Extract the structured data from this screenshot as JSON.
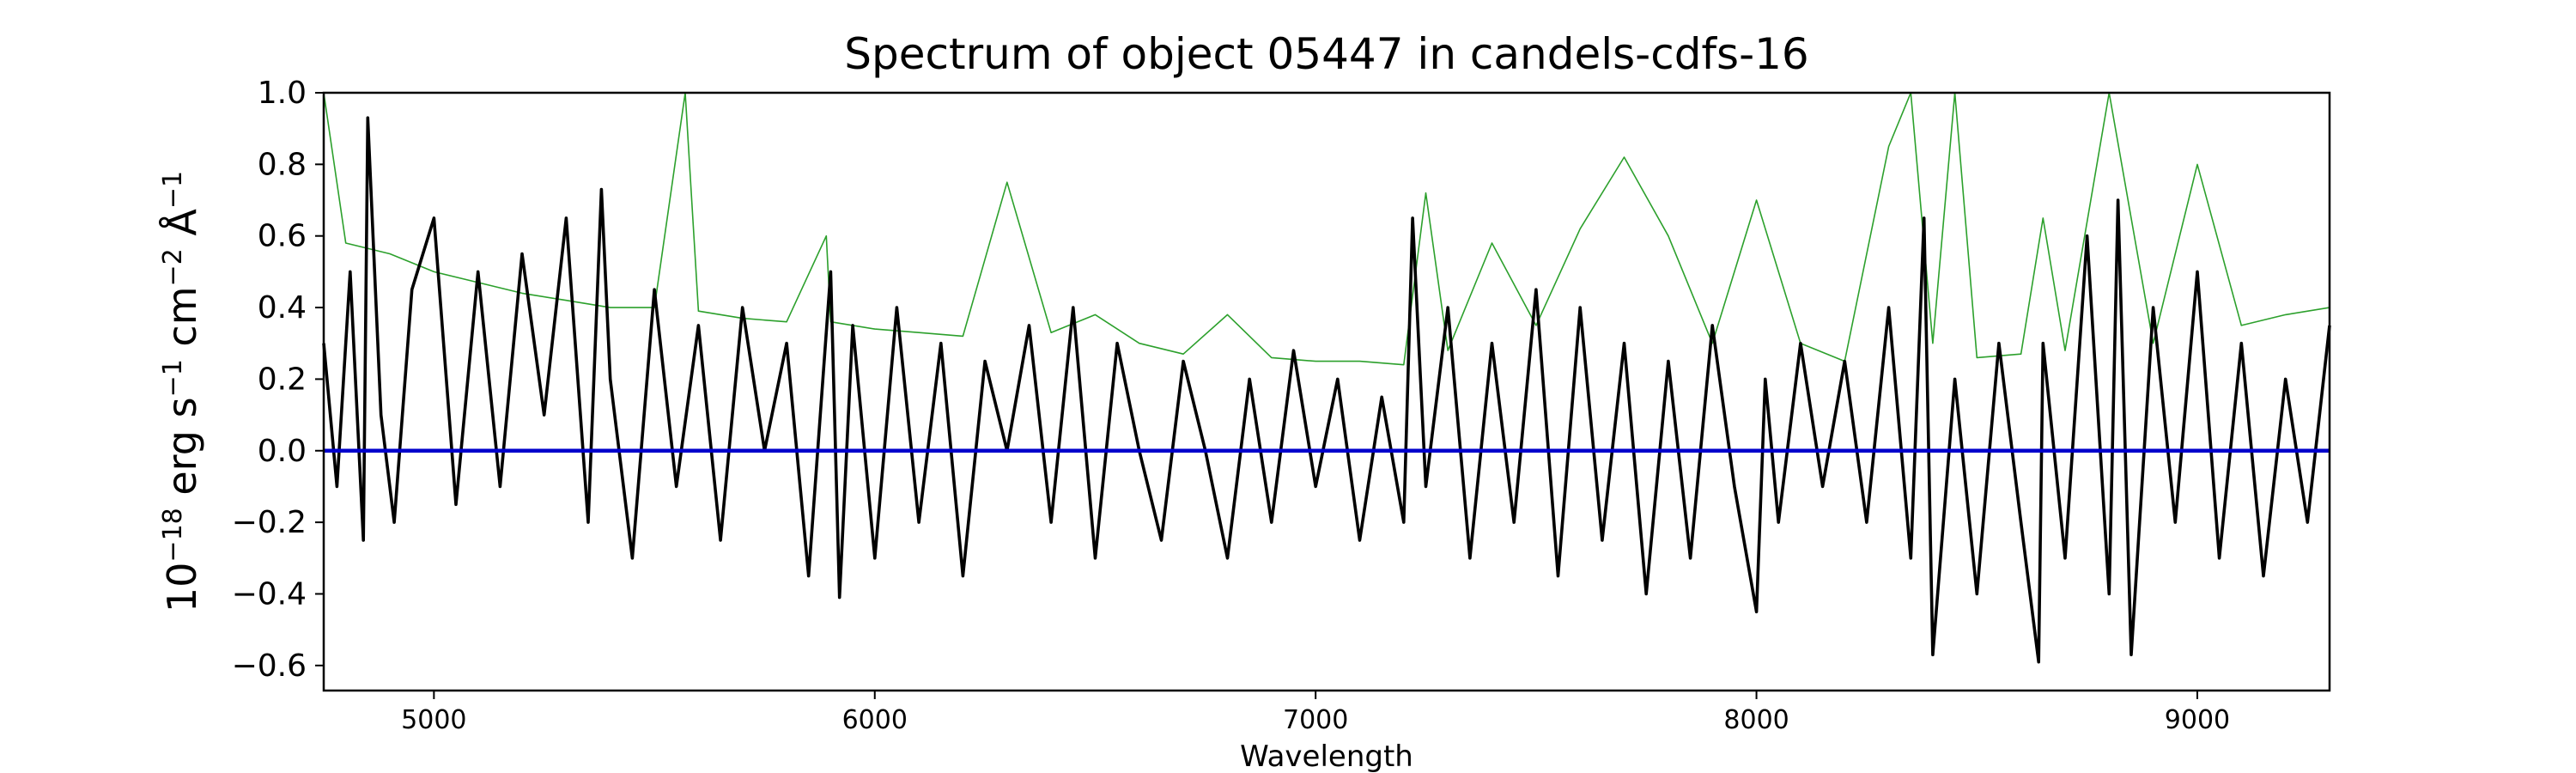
{
  "chart_data": {
    "type": "line",
    "title": "Spectrum of object 05447 in candels-cdfs-16",
    "xlabel": "Wavelength",
    "ylabel": "10−18 erg s−1 cm−2 Å−1",
    "ylabel_parts": [
      {
        "text": "10",
        "sup": false
      },
      {
        "text": "−18",
        "sup": true
      },
      {
        "text": " erg s",
        "sup": false
      },
      {
        "text": "−1",
        "sup": true
      },
      {
        "text": " cm",
        "sup": false
      },
      {
        "text": "−2",
        "sup": true
      },
      {
        "text": " Å",
        "sup": false
      },
      {
        "text": "−1",
        "sup": true
      }
    ],
    "xlim": [
      4750,
      9300
    ],
    "ylim": [
      -0.67,
      1.0
    ],
    "xticks": [
      5000,
      6000,
      7000,
      8000,
      9000
    ],
    "xtick_labels": [
      "5000",
      "6000",
      "7000",
      "8000",
      "9000"
    ],
    "yticks": [
      -0.6,
      -0.4,
      -0.2,
      0.0,
      0.2,
      0.4,
      0.6,
      0.8,
      1.0
    ],
    "ytick_labels": [
      "−0.6",
      "−0.4",
      "−0.2",
      "0.0",
      "0.2",
      "0.4",
      "0.6",
      "0.8",
      "1.0"
    ],
    "grid": false,
    "legend": "none",
    "series": [
      {
        "color": "#2ca02c",
        "x": [
          4750,
          4800,
          4900,
          5000,
          5100,
          5200,
          5300,
          5400,
          5500,
          5570,
          5600,
          5700,
          5800,
          5890,
          5900,
          6000,
          6100,
          6200,
          6300,
          6400,
          6500,
          6600,
          6700,
          6800,
          6900,
          7000,
          7100,
          7200,
          7250,
          7300,
          7400,
          7500,
          7600,
          7700,
          7800,
          7900,
          8000,
          8100,
          8200,
          8300,
          8350,
          8400,
          8450,
          8500,
          8600,
          8650,
          8700,
          8800,
          8900,
          9000,
          9100,
          9200,
          9300
        ],
        "y": [
          1.0,
          0.58,
          0.55,
          0.5,
          0.47,
          0.44,
          0.42,
          0.4,
          0.4,
          1.0,
          0.39,
          0.37,
          0.36,
          0.6,
          0.36,
          0.34,
          0.33,
          0.32,
          0.75,
          0.33,
          0.38,
          0.3,
          0.27,
          0.38,
          0.26,
          0.25,
          0.25,
          0.24,
          0.72,
          0.28,
          0.58,
          0.35,
          0.62,
          0.82,
          0.6,
          0.3,
          0.7,
          0.3,
          0.25,
          0.85,
          1.0,
          0.3,
          1.0,
          0.26,
          0.27,
          0.65,
          0.28,
          1.0,
          0.3,
          0.8,
          0.35,
          0.38,
          0.4
        ]
      },
      {
        "color": "#000000",
        "x": [
          4750,
          4780,
          4810,
          4840,
          4850,
          4880,
          4910,
          4950,
          5000,
          5050,
          5100,
          5150,
          5200,
          5250,
          5300,
          5350,
          5380,
          5400,
          5450,
          5500,
          5550,
          5600,
          5650,
          5700,
          5750,
          5800,
          5850,
          5900,
          5920,
          5950,
          6000,
          6050,
          6100,
          6150,
          6200,
          6250,
          6300,
          6350,
          6400,
          6450,
          6500,
          6550,
          6600,
          6650,
          6700,
          6750,
          6800,
          6850,
          6900,
          6950,
          7000,
          7050,
          7100,
          7150,
          7200,
          7220,
          7250,
          7300,
          7350,
          7400,
          7450,
          7500,
          7550,
          7600,
          7650,
          7700,
          7750,
          7800,
          7850,
          7900,
          7950,
          8000,
          8020,
          8050,
          8100,
          8150,
          8200,
          8250,
          8300,
          8350,
          8380,
          8400,
          8450,
          8500,
          8550,
          8600,
          8640,
          8650,
          8700,
          8750,
          8800,
          8820,
          8850,
          8900,
          8950,
          9000,
          9050,
          9100,
          9150,
          9200,
          9250,
          9300
        ],
        "y": [
          0.3,
          -0.1,
          0.5,
          -0.25,
          0.93,
          0.1,
          -0.2,
          0.45,
          0.65,
          -0.15,
          0.5,
          -0.1,
          0.55,
          0.1,
          0.65,
          -0.2,
          0.73,
          0.2,
          -0.3,
          0.45,
          -0.1,
          0.35,
          -0.25,
          0.4,
          0.0,
          0.3,
          -0.35,
          0.5,
          -0.41,
          0.35,
          -0.3,
          0.4,
          -0.2,
          0.3,
          -0.35,
          0.25,
          0.0,
          0.35,
          -0.2,
          0.4,
          -0.3,
          0.3,
          0.0,
          -0.25,
          0.25,
          0.0,
          -0.3,
          0.2,
          -0.2,
          0.28,
          -0.1,
          0.2,
          -0.25,
          0.15,
          -0.2,
          0.65,
          -0.1,
          0.4,
          -0.3,
          0.3,
          -0.2,
          0.45,
          -0.35,
          0.4,
          -0.25,
          0.3,
          -0.4,
          0.25,
          -0.3,
          0.35,
          -0.1,
          -0.45,
          0.2,
          -0.2,
          0.3,
          -0.1,
          0.25,
          -0.2,
          0.4,
          -0.3,
          0.65,
          -0.57,
          0.2,
          -0.4,
          0.3,
          -0.2,
          -0.59,
          0.3,
          -0.3,
          0.6,
          -0.4,
          0.7,
          -0.57,
          0.4,
          -0.2,
          0.5,
          -0.3,
          0.3,
          -0.35,
          0.2,
          -0.2,
          0.35
        ]
      },
      {
        "color": "#0000cc",
        "x": [
          4750,
          9300
        ],
        "y": [
          0.0,
          0.0
        ]
      }
    ]
  }
}
